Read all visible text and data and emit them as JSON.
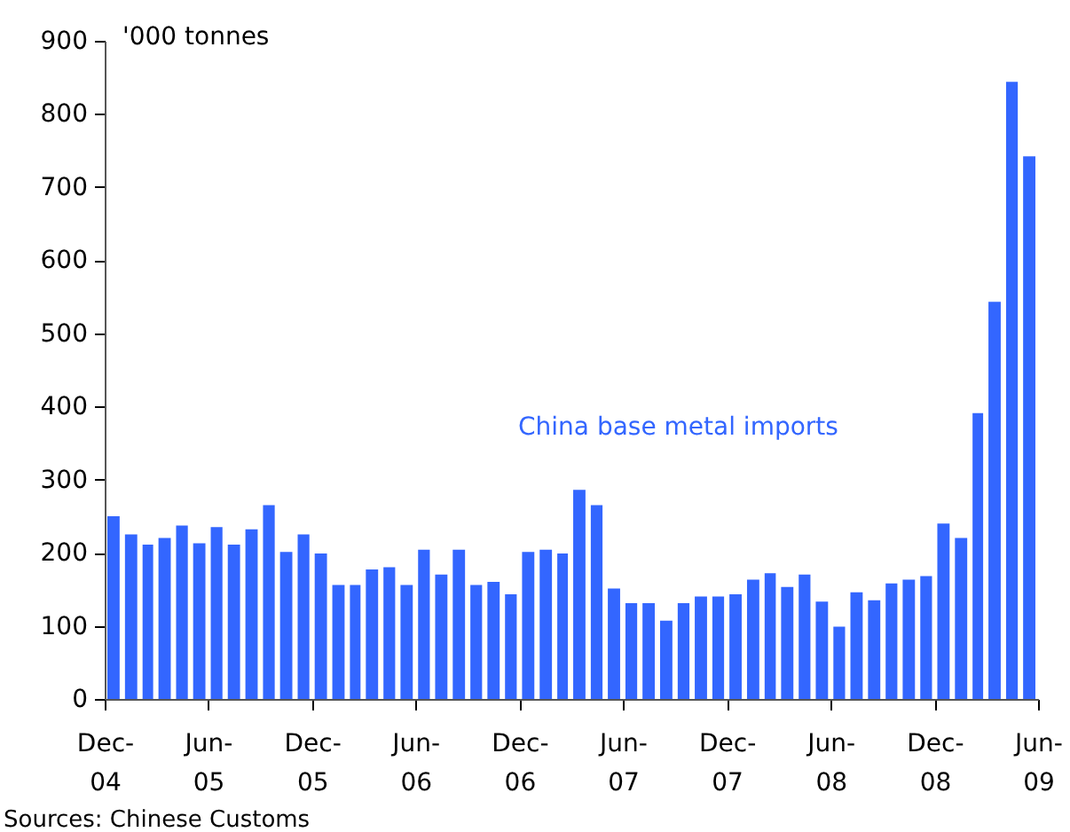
{
  "chart_data": {
    "type": "bar",
    "ylabel": "'000 tonnes",
    "x": [
      "2004-12-15",
      "2005-01-15",
      "2005-02-15",
      "2005-03-15",
      "2005-04-15",
      "2005-05-15",
      "2005-06-15",
      "2005-07-15",
      "2005-08-15",
      "2005-09-15",
      "2005-10-15",
      "2005-11-15",
      "2005-12-15",
      "2006-01-15",
      "2006-02-15",
      "2006-03-15",
      "2006-04-15",
      "2006-05-15",
      "2006-06-15",
      "2006-07-15",
      "2006-08-15",
      "2006-09-15",
      "2006-10-15",
      "2006-11-15",
      "2006-12-15",
      "2007-01-15",
      "2007-02-15",
      "2007-03-15",
      "2007-04-15",
      "2007-05-15",
      "2007-06-15",
      "2007-07-15",
      "2007-08-15",
      "2007-09-15",
      "2007-10-15",
      "2007-11-15",
      "2007-12-15",
      "2008-01-15",
      "2008-02-15",
      "2008-03-15",
      "2008-04-15",
      "2008-05-15",
      "2008-06-15",
      "2008-07-15",
      "2008-08-15",
      "2008-09-15",
      "2008-10-15",
      "2008-11-15",
      "2008-12-15",
      "2009-01-15",
      "2009-02-15",
      "2009-03-15",
      "2009-04-15",
      "2009-05-15"
    ],
    "series": [
      {
        "name": "China base metal imports",
        "color": "#3366ff",
        "values": [
          250,
          225,
          211,
          220,
          237,
          213,
          235,
          211,
          232,
          265,
          201,
          225,
          199,
          156,
          156,
          177,
          180,
          156,
          204,
          170,
          204,
          156,
          160,
          143,
          201,
          204,
          199,
          286,
          265,
          151,
          131,
          131,
          107,
          131,
          140,
          140,
          143,
          163,
          172,
          153,
          170,
          133,
          99,
          146,
          135,
          158,
          163,
          168,
          240,
          220,
          391,
          543,
          844,
          742
        ]
      }
    ],
    "xlim": [
      "2004-12",
      "2009-06"
    ],
    "xticks": [
      {
        "value": "2004-12",
        "label": "Dec-04"
      },
      {
        "value": "2005-06",
        "label": "Jun-05"
      },
      {
        "value": "2005-12",
        "label": "Dec-05"
      },
      {
        "value": "2006-06",
        "label": "Jun-06"
      },
      {
        "value": "2006-12",
        "label": "Dec-06"
      },
      {
        "value": "2007-06",
        "label": "Jun-07"
      },
      {
        "value": "2007-12",
        "label": "Dec-07"
      },
      {
        "value": "2008-06",
        "label": "Jun-08"
      },
      {
        "value": "2008-12",
        "label": "Dec-08"
      },
      {
        "value": "2009-06",
        "label": "Jun-09"
      }
    ],
    "ylim": [
      0,
      900
    ],
    "yticks": [
      0,
      100,
      200,
      300,
      400,
      500,
      600,
      700,
      800,
      900
    ],
    "grid": false,
    "legend": false,
    "annotations": [
      "Sources: Chinese Customs"
    ]
  }
}
